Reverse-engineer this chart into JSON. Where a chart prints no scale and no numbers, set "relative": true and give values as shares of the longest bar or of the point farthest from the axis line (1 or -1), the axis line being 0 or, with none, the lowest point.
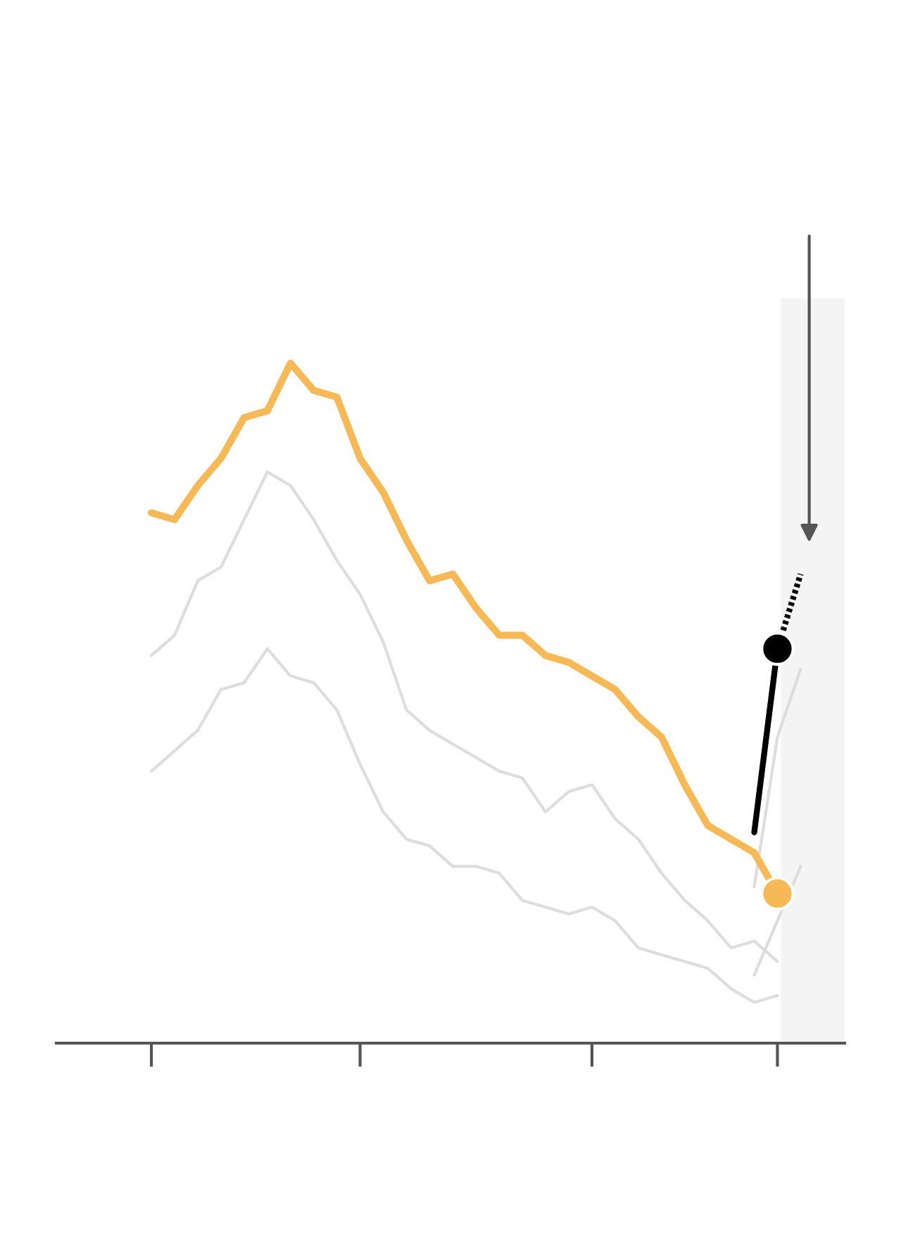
{
  "chart_data": {
    "type": "line",
    "relative": true,
    "categories": [
      null,
      null,
      null,
      null,
      null,
      null,
      null,
      null,
      null,
      null,
      null,
      null,
      null,
      null,
      null,
      null,
      null,
      null,
      null,
      null,
      null,
      null,
      null,
      null,
      null,
      null,
      null,
      null,
      null
    ],
    "grid": false,
    "legend": false,
    "marker": "none",
    "line_style": "solid",
    "series": [
      {
        "color": "#dddddd",
        "values": [
          0.57,
          0.6,
          0.68,
          0.7,
          0.77,
          0.84,
          0.82,
          0.77,
          0.71,
          0.66,
          0.59,
          0.49,
          0.46,
          0.44,
          0.42,
          0.4,
          0.39,
          0.34,
          0.37,
          0.38,
          0.33,
          0.3,
          0.25,
          0.21,
          0.18,
          0.14,
          0.15,
          0.12,
          null
        ]
      },
      {
        "color": "#dddddd",
        "values": [
          0.4,
          0.43,
          0.46,
          0.52,
          0.53,
          0.58,
          0.54,
          0.53,
          0.49,
          0.41,
          0.34,
          0.3,
          0.29,
          0.26,
          0.26,
          0.25,
          0.21,
          0.2,
          0.19,
          0.2,
          0.18,
          0.14,
          0.13,
          0.12,
          0.11,
          0.08,
          0.06,
          0.07,
          null
        ]
      },
      {
        "color": "#dddddd",
        "values": [
          null,
          null,
          null,
          null,
          null,
          null,
          null,
          null,
          null,
          null,
          null,
          null,
          null,
          null,
          null,
          null,
          null,
          null,
          null,
          null,
          null,
          null,
          null,
          null,
          null,
          null,
          0.23,
          0.45,
          0.55
        ]
      },
      {
        "color": "#dddddd",
        "values": [
          null,
          null,
          null,
          null,
          null,
          null,
          null,
          null,
          null,
          null,
          null,
          null,
          null,
          null,
          null,
          null,
          null,
          null,
          null,
          null,
          null,
          null,
          null,
          null,
          null,
          null,
          0.1,
          0.18,
          0.26
        ]
      },
      {
        "color": "#f7b955",
        "values": [
          0.78,
          0.77,
          0.82,
          0.86,
          0.92,
          0.93,
          1.0,
          0.96,
          0.95,
          0.86,
          0.81,
          0.74,
          0.68,
          0.69,
          0.64,
          0.6,
          0.6,
          0.57,
          0.56,
          0.54,
          0.52,
          0.48,
          0.45,
          0.38,
          0.32,
          0.3,
          0.28,
          0.22,
          null
        ]
      },
      {
        "color": "#000000",
        "values": [
          null,
          null,
          null,
          null,
          null,
          null,
          null,
          null,
          null,
          null,
          null,
          null,
          null,
          null,
          null,
          null,
          null,
          null,
          null,
          null,
          null,
          null,
          null,
          null,
          null,
          null,
          0.31,
          0.58,
          null
        ]
      },
      {
        "color": "#000000",
        "line_style": "dotted",
        "values": [
          null,
          null,
          null,
          null,
          null,
          null,
          null,
          null,
          null,
          null,
          null,
          null,
          null,
          null,
          null,
          null,
          null,
          null,
          null,
          null,
          null,
          null,
          null,
          null,
          null,
          null,
          null,
          0.58,
          0.69
        ]
      },
      {
        "color": "#f7b955",
        "marker": "circle",
        "values": [
          null,
          null,
          null,
          null,
          null,
          null,
          null,
          null,
          null,
          null,
          null,
          null,
          null,
          null,
          null,
          null,
          null,
          null,
          null,
          null,
          null,
          null,
          null,
          null,
          null,
          null,
          null,
          0.22,
          null
        ]
      },
      {
        "color": "#000000",
        "marker": "circle",
        "values": [
          null,
          null,
          null,
          null,
          null,
          null,
          null,
          null,
          null,
          null,
          null,
          null,
          null,
          null,
          null,
          null,
          null,
          null,
          null,
          null,
          null,
          null,
          null,
          null,
          null,
          null,
          null,
          0.58,
          null
        ]
      }
    ]
  }
}
